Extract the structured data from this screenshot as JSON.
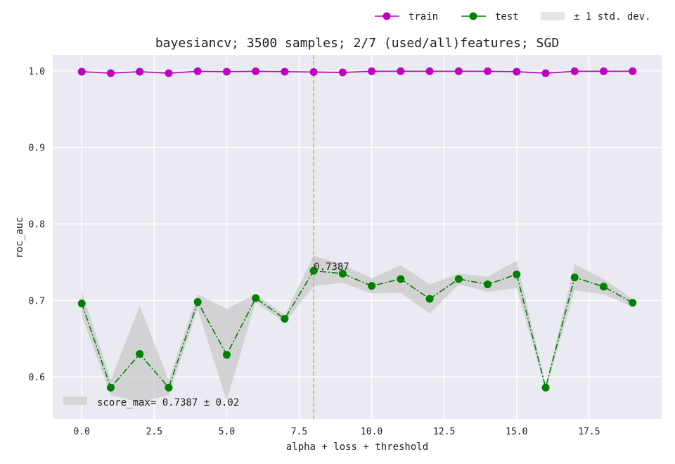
{
  "chart_data": {
    "type": "line",
    "title": "bayesiancv; 3500 samples; 2/7 (used/all)features; SGD",
    "xlabel": "alpha + loss + threshold",
    "ylabel": "roc_auc",
    "xlim": [
      -1,
      20
    ],
    "ylim": [
      0.545,
      1.021
    ],
    "x_ticks": [
      0.0,
      2.5,
      5.0,
      7.5,
      10.0,
      12.5,
      15.0,
      17.5
    ],
    "x_tick_labels": [
      "0.0",
      "2.5",
      "5.0",
      "7.5",
      "10.0",
      "12.5",
      "15.0",
      "17.5"
    ],
    "y_ticks": [
      0.6,
      0.7,
      0.8,
      0.9,
      1.0
    ],
    "y_tick_labels": [
      "0.6",
      "0.7",
      "0.8",
      "0.9",
      "1.0"
    ],
    "grid": true,
    "legend_top": {
      "placement": "top-right, above plot",
      "entries": [
        "train",
        "test",
        "± 1 std. dev."
      ]
    },
    "legend_inner": {
      "placement": "lower-left",
      "text": "score_max= 0.7387 ± 0.02"
    },
    "best_index": 8,
    "best_annotation": "0.7387",
    "x": [
      0,
      1,
      2,
      3,
      4,
      5,
      6,
      7,
      8,
      9,
      10,
      11,
      12,
      13,
      14,
      15,
      16,
      17,
      18,
      19
    ],
    "series": [
      {
        "name": "train",
        "color": "#bf00bf",
        "linestyle": "solid",
        "values": [
          0.999,
          0.997,
          0.999,
          0.997,
          0.9995,
          0.999,
          0.9995,
          0.999,
          0.9985,
          0.998,
          0.9995,
          0.9995,
          0.9995,
          0.9995,
          0.9995,
          0.999,
          0.997,
          0.9995,
          0.9995,
          0.9995
        ],
        "std": [
          0.001,
          0.001,
          0.001,
          0.001,
          0.001,
          0.001,
          0.001,
          0.001,
          0.001,
          0.001,
          0.001,
          0.001,
          0.001,
          0.001,
          0.001,
          0.001,
          0.001,
          0.001,
          0.001,
          0.001
        ]
      },
      {
        "name": "test",
        "color": "#008000",
        "linestyle": "dashdot",
        "values": [
          0.696,
          0.586,
          0.63,
          0.586,
          0.698,
          0.629,
          0.703,
          0.676,
          0.7387,
          0.735,
          0.719,
          0.728,
          0.702,
          0.728,
          0.721,
          0.734,
          0.586,
          0.73,
          0.718,
          0.697
        ],
        "std": [
          0.016,
          0.01,
          0.063,
          0.01,
          0.01,
          0.06,
          0.005,
          0.005,
          0.02,
          0.012,
          0.01,
          0.018,
          0.019,
          0.007,
          0.01,
          0.018,
          0.003,
          0.017,
          0.01,
          0.005
        ]
      }
    ],
    "colors": {
      "plot_bg": "#eaeaf2",
      "grid": "#ffffff",
      "band": "#c8c8c8",
      "vline": "#bfbf00"
    }
  }
}
